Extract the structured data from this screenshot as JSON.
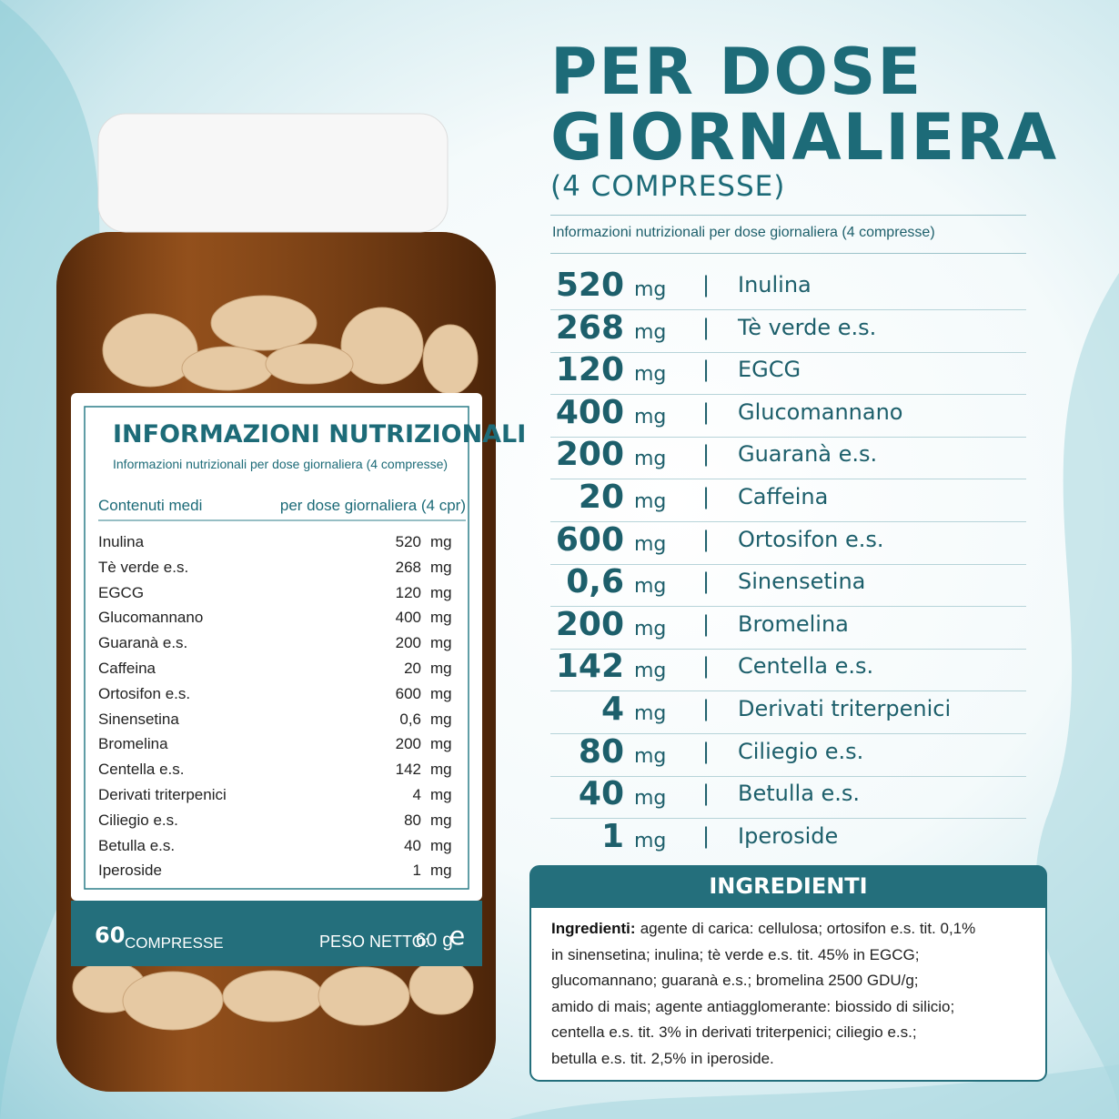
{
  "header": {
    "title_lines": [
      "PER DOSE",
      "GIORNALIERA"
    ],
    "subtitle": "(4 COMPRESSE)",
    "caption": "Informazioni nutrizionali per dose giornaliera (4 compresse)"
  },
  "rows": [
    {
      "amount": "520",
      "unit": "mg",
      "name": "Inulina"
    },
    {
      "amount": "268",
      "unit": "mg",
      "name": "Tè verde e.s."
    },
    {
      "amount": "120",
      "unit": "mg",
      "name": "EGCG"
    },
    {
      "amount": "400",
      "unit": "mg",
      "name": "Glucomannano"
    },
    {
      "amount": "200",
      "unit": "mg",
      "name": "Guaranà e.s."
    },
    {
      "amount": "20",
      "unit": "mg",
      "name": "Caffeina"
    },
    {
      "amount": "600",
      "unit": "mg",
      "name": "Ortosifon e.s."
    },
    {
      "amount": "0,6",
      "unit": "mg",
      "name": "Sinensetina"
    },
    {
      "amount": "200",
      "unit": "mg",
      "name": "Bromelina"
    },
    {
      "amount": "142",
      "unit": "mg",
      "name": "Centella e.s."
    },
    {
      "amount": "4",
      "unit": "mg",
      "name": "Derivati triterpenici"
    },
    {
      "amount": "80",
      "unit": "mg",
      "name": "Ciliegio e.s."
    },
    {
      "amount": "40",
      "unit": "mg",
      "name": "Betulla e.s."
    },
    {
      "amount": "1",
      "unit": "mg",
      "name": "Iperoside"
    }
  ],
  "label": {
    "title": "INFORMAZIONI NUTRIZIONALI",
    "subtitle": "Informazioni nutrizionali per dose giornaliera (4 compresse)",
    "col_left": "Contenuti medi",
    "col_right": "per dose giornaliera (4 cpr)",
    "count": "60",
    "count_unit": "COMPRESSE",
    "weight_label": "PESO NETTO:",
    "weight": "60 g",
    "estimate_mark": "e"
  },
  "ingredients": {
    "title": "INGREDIENTI",
    "lead": "Ingredienti:",
    "lines": [
      " agente di carica: cellulosa; ortosifon e.s. tit. 0,1%",
      "in sinensetina; inulina; tè verde e.s. tit. 45% in EGCG;",
      "glucomannano; guaranà e.s.; bromelina 2500 GDU/g;",
      "amido di mais; agente antiagglomerante: biossido di silicio;",
      "centella e.s. tit. 3% in derivati triterpenici; ciliegio e.s.;",
      "betulla e.s. tit. 2,5% in iperoside."
    ]
  }
}
